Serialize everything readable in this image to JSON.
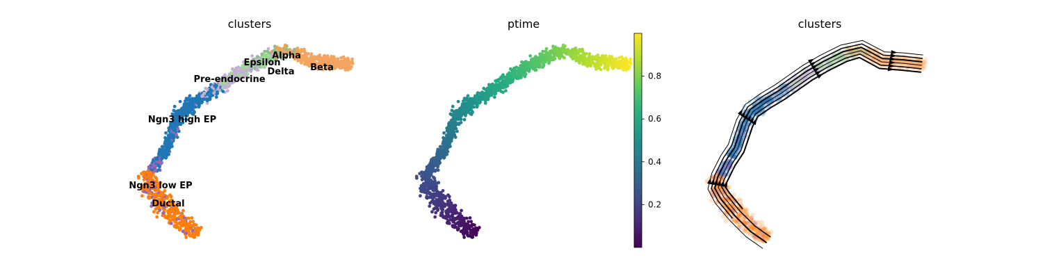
{
  "chart_data": [
    {
      "type": "scatter",
      "title": "clusters",
      "xlabel": "",
      "ylabel": "",
      "grid": false,
      "clusters": [
        {
          "name": "Ductal",
          "color": "#ff7f0e"
        },
        {
          "name": "Ngn3 low EP",
          "color": "#9467bd"
        },
        {
          "name": "Ngn3 high EP",
          "color": "#1f77b4"
        },
        {
          "name": "Pre-endocrine",
          "color": "#c5b0d5"
        },
        {
          "name": "Epsilon",
          "color": "#98df8a"
        },
        {
          "name": "Alpha",
          "color": "#8fbc8f"
        },
        {
          "name": "Delta",
          "color": "#ff9f4a"
        },
        {
          "name": "Beta",
          "color": "#f4a460"
        }
      ]
    },
    {
      "type": "scatter",
      "title": "ptime",
      "colorbar": {
        "colormap": "viridis",
        "range": [
          0,
          1
        ],
        "ticks": [
          "0.2",
          "0.4",
          "0.6",
          "0.8"
        ]
      },
      "grid": false
    },
    {
      "type": "scatter",
      "title": "clusters",
      "overlay": "velocity-streamlines",
      "grid": false
    }
  ]
}
